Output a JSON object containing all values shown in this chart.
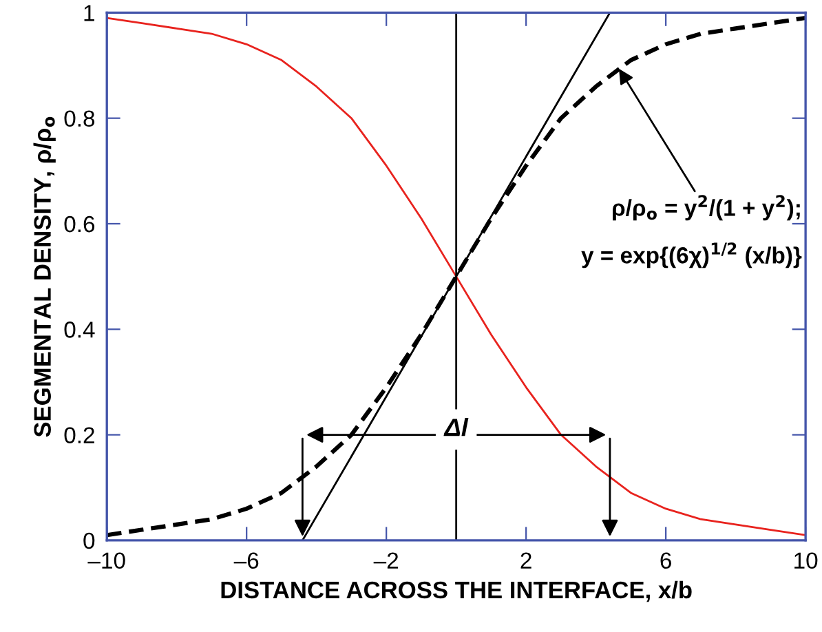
{
  "chart_data": {
    "type": "line",
    "xlabel": "DISTANCE ACROSS THE INTERFACE, x/b",
    "ylabel": "SEGMENTAL DENSITY, ρ/ρ$_{o}$",
    "x": [
      -10,
      -9,
      -8,
      -7,
      -6,
      -5,
      -4,
      -3,
      -2,
      -1,
      0,
      1,
      2,
      3,
      4,
      5,
      6,
      7,
      8,
      9,
      10
    ],
    "series": [
      {
        "color": "#e8231e",
        "line_style": "solid",
        "values": [
          0.99,
          0.98,
          0.97,
          0.96,
          0.94,
          0.91,
          0.86,
          0.8,
          0.71,
          0.61,
          0.5,
          0.39,
          0.29,
          0.2,
          0.14,
          0.09,
          0.06,
          0.04,
          0.03,
          0.02,
          0.01
        ]
      },
      {
        "color": "#000000",
        "line_style": "dashed",
        "values": [
          0.01,
          0.02,
          0.03,
          0.04,
          0.06,
          0.09,
          0.14,
          0.2,
          0.29,
          0.39,
          0.5,
          0.61,
          0.71,
          0.8,
          0.86,
          0.91,
          0.94,
          0.96,
          0.97,
          0.98,
          0.99
        ]
      },
      {
        "color": "#000000",
        "line_style": "solid",
        "x": [
          -4.4,
          4.4
        ],
        "values": [
          0,
          1
        ]
      }
    ],
    "ref_lines": [
      {
        "axis": "x",
        "value": 0,
        "color": "#000000"
      }
    ],
    "annotations": [
      {
        "text": "Δl",
        "x": 0,
        "y": 0.2
      },
      {
        "text": "ρ/ρ$_{o}$ = y$^{2}$/(1 + y$^{2}$);",
        "x": 4.6,
        "y": 0.9
      },
      "y = exp{(6χ)$^{1/2}$ (x/b)}"
    ],
    "xlim": [
      -10,
      10
    ],
    "ylim": [
      0,
      1
    ],
    "xticks": [
      {
        "value": -10,
        "label": "–10"
      },
      {
        "value": -6,
        "label": "–6"
      },
      {
        "value": -2,
        "label": "–2"
      },
      2,
      6,
      10
    ],
    "yticks": [
      0,
      0.2,
      0.4,
      0.6,
      0.8,
      1
    ],
    "grid": false,
    "legend": false,
    "marker": "none"
  }
}
